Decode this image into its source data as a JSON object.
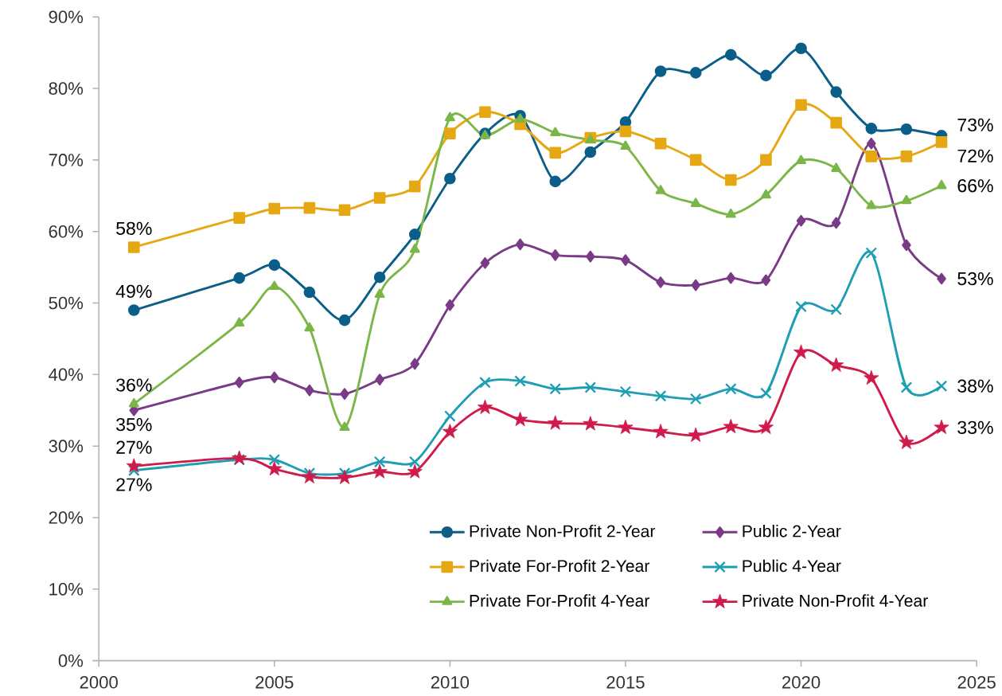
{
  "chart_data": {
    "type": "line",
    "line_style": "solid",
    "legend": "bottom right",
    "x": [
      2001,
      2004,
      2005,
      2006,
      2007,
      2008,
      2009,
      2010,
      2011,
      2012,
      2013,
      2014,
      2015,
      2016,
      2017,
      2018,
      2019,
      2020,
      2021,
      2022,
      2023,
      2024
    ],
    "xlim": [
      2000,
      2025
    ],
    "xticks": [
      2000,
      2005,
      2010,
      2015,
      2020,
      2025
    ],
    "ylim": [
      0,
      90
    ],
    "yticks": [
      {
        "value": 0,
        "label": "0%"
      },
      {
        "value": 10,
        "label": "10%"
      },
      {
        "value": 20,
        "label": "20%"
      },
      {
        "value": 30,
        "label": "30%"
      },
      {
        "value": 40,
        "label": "40%"
      },
      {
        "value": 50,
        "label": "50%"
      },
      {
        "value": 60,
        "label": "60%"
      },
      {
        "value": 70,
        "label": "70%"
      },
      {
        "value": 80,
        "label": "80%"
      },
      {
        "value": 90,
        "label": "90%"
      }
    ],
    "series": [
      {
        "name": "Private Non-Profit 2-Year",
        "color": "#0b5e88",
        "marker": "circle",
        "values": [
          49.0,
          53.5,
          55.3,
          51.5,
          47.6,
          53.6,
          59.6,
          67.4,
          73.7,
          76.2,
          67.0,
          71.1,
          75.3,
          82.4,
          82.2,
          84.7,
          81.8,
          85.6,
          79.5,
          74.4,
          74.3,
          73.4
        ],
        "value_labels": [
          "49%",
          null,
          null,
          null,
          null,
          null,
          null,
          null,
          null,
          null,
          null,
          null,
          null,
          null,
          null,
          null,
          null,
          null,
          null,
          null,
          null,
          "73%"
        ]
      },
      {
        "name": "Public 2-Year",
        "color": "#7a3b86",
        "marker": "diamond",
        "values": [
          35.0,
          38.9,
          39.6,
          37.8,
          37.3,
          39.3,
          41.5,
          49.7,
          55.6,
          58.2,
          56.7,
          56.5,
          56.0,
          52.9,
          52.5,
          53.5,
          53.2,
          61.5,
          61.2,
          72.3,
          58.1,
          53.4
        ],
        "value_labels": [
          "35%",
          null,
          null,
          null,
          null,
          null,
          null,
          null,
          null,
          null,
          null,
          null,
          null,
          null,
          null,
          null,
          null,
          null,
          null,
          null,
          null,
          "53%"
        ]
      },
      {
        "name": "Private For-Profit 2-Year",
        "color": "#e5a812",
        "marker": "square",
        "values": [
          57.8,
          61.9,
          63.2,
          63.3,
          63.0,
          64.7,
          66.3,
          73.7,
          76.7,
          75.0,
          71.0,
          73.1,
          74.0,
          72.3,
          70.0,
          67.2,
          70.0,
          77.7,
          75.2,
          70.5,
          70.5,
          72.5
        ],
        "value_labels": [
          "58%",
          null,
          null,
          null,
          null,
          null,
          null,
          null,
          null,
          null,
          null,
          null,
          null,
          null,
          null,
          null,
          null,
          null,
          null,
          null,
          null,
          "72%"
        ]
      },
      {
        "name": "Public 4-Year",
        "color": "#1f9eb3",
        "marker": "cross",
        "values": [
          26.6,
          28.1,
          28.1,
          26.2,
          26.2,
          27.8,
          27.8,
          34.2,
          38.9,
          39.1,
          38.0,
          38.2,
          37.6,
          37.0,
          36.6,
          38.0,
          37.4,
          49.5,
          49.1,
          57.0,
          38.2,
          38.4
        ],
        "value_labels": [
          "27%",
          null,
          null,
          null,
          null,
          null,
          null,
          null,
          null,
          null,
          null,
          null,
          null,
          null,
          null,
          null,
          null,
          null,
          null,
          null,
          null,
          "38%"
        ]
      },
      {
        "name": "Private For-Profit 4-Year",
        "color": "#7ab648",
        "marker": "triangle",
        "values": [
          35.9,
          47.2,
          52.3,
          46.5,
          32.6,
          51.2,
          57.5,
          75.9,
          73.4,
          75.7,
          73.8,
          72.8,
          71.9,
          65.7,
          63.9,
          62.4,
          65.1,
          69.9,
          68.8,
          63.6,
          64.3,
          66.4
        ],
        "value_labels": [
          "36%",
          null,
          null,
          null,
          null,
          null,
          null,
          null,
          null,
          null,
          null,
          null,
          null,
          null,
          null,
          null,
          null,
          null,
          null,
          null,
          null,
          "66%"
        ]
      },
      {
        "name": "Private Non-Profit 4-Year",
        "color": "#d01a4b",
        "marker": "star",
        "values": [
          27.2,
          28.3,
          26.8,
          25.7,
          25.6,
          26.4,
          26.4,
          32.0,
          35.4,
          33.7,
          33.2,
          33.1,
          32.6,
          32.0,
          31.5,
          32.7,
          32.6,
          43.1,
          41.3,
          39.5,
          30.5,
          32.6
        ],
        "value_labels": [
          "27%",
          null,
          null,
          null,
          null,
          null,
          null,
          null,
          null,
          null,
          null,
          null,
          null,
          null,
          null,
          null,
          null,
          null,
          null,
          null,
          null,
          "33%"
        ]
      }
    ]
  }
}
